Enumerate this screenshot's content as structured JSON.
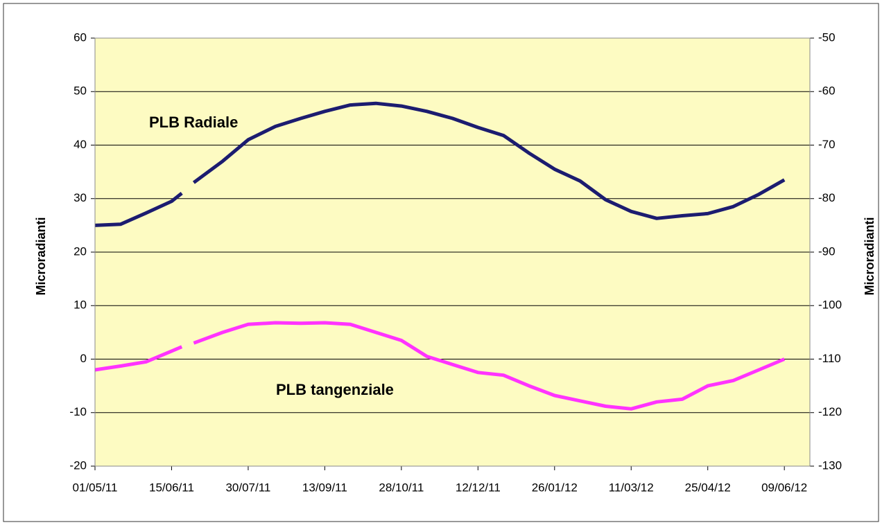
{
  "chart_data": {
    "type": "line",
    "x": [
      "2011-05-01",
      "2011-05-16",
      "2011-05-31",
      "2011-06-15",
      "2011-06-21",
      "2011-06-24",
      "2011-06-28",
      "2011-07-15",
      "2011-07-30",
      "2011-08-15",
      "2011-08-30",
      "2011-09-13",
      "2011-09-28",
      "2011-10-13",
      "2011-10-28",
      "2011-11-12",
      "2011-11-27",
      "2011-12-12",
      "2011-12-27",
      "2012-01-11",
      "2012-01-26",
      "2012-02-10",
      "2012-02-25",
      "2012-03-11",
      "2012-03-26",
      "2012-04-10",
      "2012-04-25",
      "2012-05-10",
      "2012-05-25",
      "2012-06-09"
    ],
    "series": [
      {
        "name": "PLB Radiale",
        "color": "#1c1c70",
        "values": [
          25,
          25.2,
          27.3,
          29.5,
          31,
          null,
          33,
          37,
          41,
          43.5,
          45,
          46.3,
          47.5,
          47.8,
          47.3,
          46.3,
          45,
          43.3,
          41.8,
          38.5,
          35.5,
          33.3,
          29.8,
          27.6,
          26.3,
          26.8,
          27.2,
          28.5,
          30.8,
          33.5
        ]
      },
      {
        "name": "PLB tangenziale",
        "color": "#ff33ff",
        "axis": "y2",
        "values": [
          -112,
          -111.3,
          -110.5,
          -108.5,
          -107.7,
          null,
          -107,
          -105,
          -103.5,
          -103.2,
          -103.3,
          -103.2,
          -103.5,
          -105,
          -106.5,
          -109.5,
          -111,
          -112.5,
          -113,
          -115,
          -116.8,
          -117.8,
          -118.8,
          -119.3,
          -118,
          -117.5,
          -115,
          -114,
          -112,
          -110
        ]
      }
    ],
    "xlim": [
      "2011-05-01",
      "2012-06-24"
    ],
    "xticks": [
      {
        "value": "2011-05-01",
        "label": "01/05/11"
      },
      {
        "value": "2011-06-15",
        "label": "15/06/11"
      },
      {
        "value": "2011-07-30",
        "label": "30/07/11"
      },
      {
        "value": "2011-09-13",
        "label": "13/09/11"
      },
      {
        "value": "2011-10-28",
        "label": "28/10/11"
      },
      {
        "value": "2011-12-12",
        "label": "12/12/11"
      },
      {
        "value": "2012-01-26",
        "label": "26/01/12"
      },
      {
        "value": "2012-03-11",
        "label": "11/03/12"
      },
      {
        "value": "2012-04-25",
        "label": "25/04/12"
      },
      {
        "value": "2012-06-09",
        "label": "09/06/12"
      }
    ],
    "ylim": [
      -20,
      60
    ],
    "yticks": [
      -20,
      -10,
      0,
      10,
      20,
      30,
      40,
      50,
      60
    ],
    "y2lim": [
      -130,
      -50
    ],
    "y2ticks": [
      -130,
      -120,
      -110,
      -100,
      -90,
      -80,
      -70,
      -60,
      -50
    ],
    "y_label": "Microradianti",
    "y2_label": "Microradianti",
    "annotations": [
      "PLB Radiale",
      "PLB tangenziale"
    ],
    "grid": true
  }
}
